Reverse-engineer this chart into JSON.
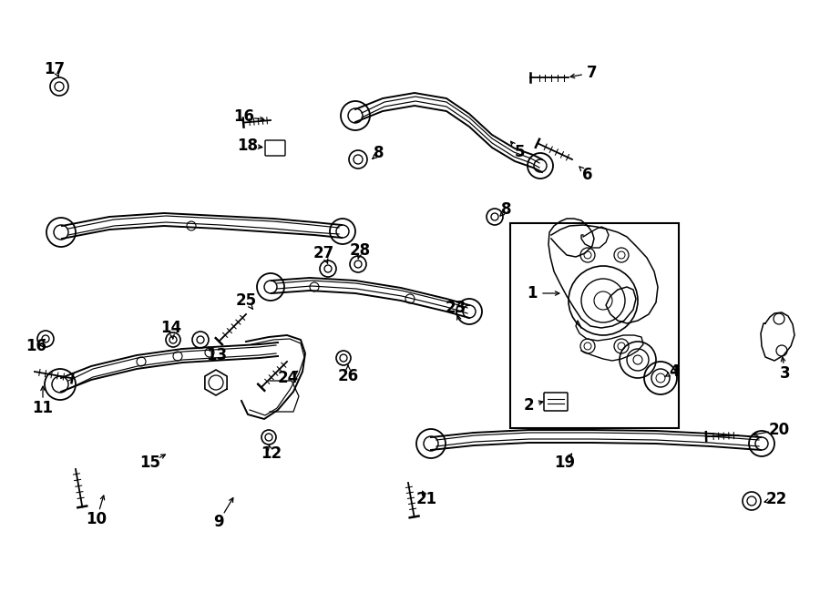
{
  "bg_color": "#ffffff",
  "line_color": "#000000",
  "fig_width": 9.0,
  "fig_height": 6.62,
  "dpi": 100
}
